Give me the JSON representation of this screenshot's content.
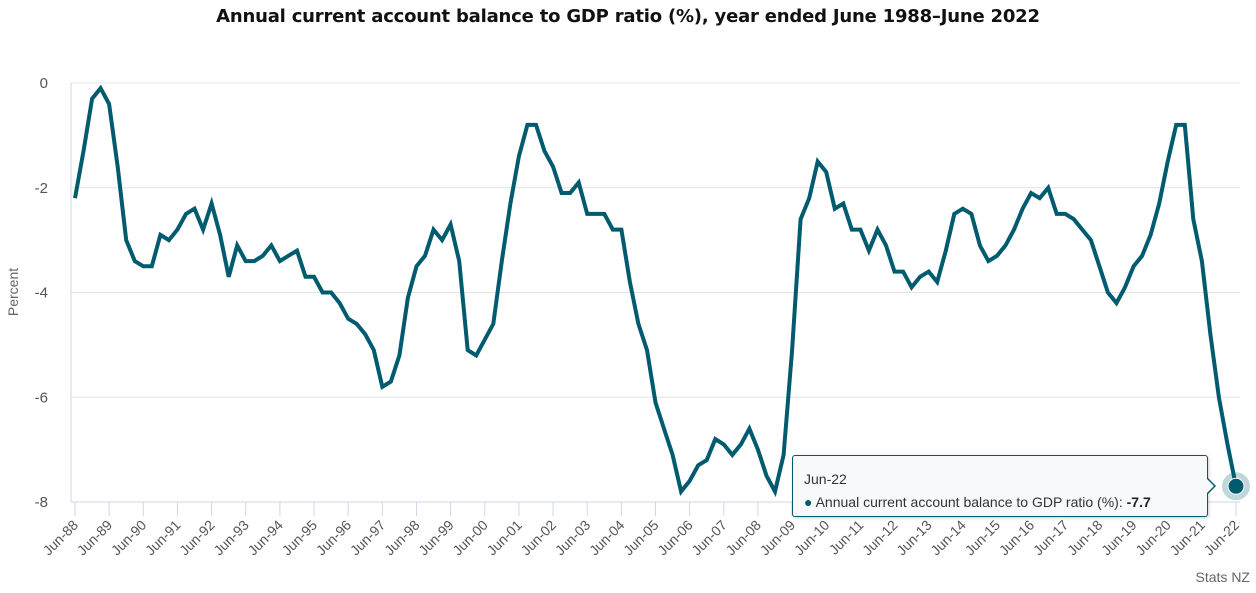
{
  "chart_data": {
    "type": "line",
    "title": "Annual current account balance to GDP ratio (%), year ended June 1988–June 2022",
    "xlabel": "",
    "ylabel": "Percent",
    "ylim": [
      -8,
      0
    ],
    "yticks": [
      0,
      -2,
      -4,
      -6,
      -8
    ],
    "grid": true,
    "xtick_labels": [
      "Jun-88",
      "Jun-89",
      "Jun-90",
      "Jun-91",
      "Jun-92",
      "Jun-93",
      "Jun-94",
      "Jun-95",
      "Jun-96",
      "Jun-97",
      "Jun-98",
      "Jun-99",
      "Jun-00",
      "Jun-01",
      "Jun-02",
      "Jun-03",
      "Jun-04",
      "Jun-05",
      "Jun-06",
      "Jun-07",
      "Jun-08",
      "Jun-09",
      "Jun-10",
      "Jun-11",
      "Jun-12",
      "Jun-13",
      "Jun-14",
      "Jun-15",
      "Jun-16",
      "Jun-17",
      "Jun-18",
      "Jun-19",
      "Jun-20",
      "Jun-21",
      "Jun-22"
    ],
    "x_start": "Jun-88",
    "x_frequency": "quarterly",
    "series": [
      {
        "name": "Annual current account balance to GDP ratio (%)",
        "color": "#005b6e",
        "values": [
          -2.2,
          -1.3,
          -0.3,
          -0.1,
          -0.4,
          -1.6,
          -3.0,
          -3.4,
          -3.5,
          -3.5,
          -2.9,
          -3.0,
          -2.8,
          -2.5,
          -2.4,
          -2.8,
          -2.3,
          -2.9,
          -3.7,
          -3.1,
          -3.4,
          -3.4,
          -3.3,
          -3.1,
          -3.4,
          -3.3,
          -3.2,
          -3.7,
          -3.7,
          -4.0,
          -4.0,
          -4.2,
          -4.5,
          -4.6,
          -4.8,
          -5.1,
          -5.8,
          -5.7,
          -5.2,
          -4.1,
          -3.5,
          -3.3,
          -2.8,
          -3.0,
          -2.7,
          -3.4,
          -5.1,
          -5.2,
          -4.9,
          -4.6,
          -3.4,
          -2.3,
          -1.4,
          -0.8,
          -0.8,
          -1.3,
          -1.6,
          -2.1,
          -2.1,
          -1.9,
          -2.5,
          -2.5,
          -2.5,
          -2.8,
          -2.8,
          -3.8,
          -4.6,
          -5.1,
          -6.1,
          -6.6,
          -7.1,
          -7.8,
          -7.6,
          -7.3,
          -7.2,
          -6.8,
          -6.9,
          -7.1,
          -6.9,
          -6.6,
          -7.0,
          -7.5,
          -7.8,
          -7.1,
          -5.1,
          -2.6,
          -2.2,
          -1.5,
          -1.7,
          -2.4,
          -2.3,
          -2.8,
          -2.8,
          -3.2,
          -2.8,
          -3.1,
          -3.6,
          -3.6,
          -3.9,
          -3.7,
          -3.6,
          -3.8,
          -3.2,
          -2.5,
          -2.4,
          -2.5,
          -3.1,
          -3.4,
          -3.3,
          -3.1,
          -2.8,
          -2.4,
          -2.1,
          -2.2,
          -2.0,
          -2.5,
          -2.5,
          -2.6,
          -2.8,
          -3.0,
          -3.5,
          -4.0,
          -4.2,
          -3.9,
          -3.5,
          -3.3,
          -2.9,
          -2.3,
          -1.5,
          -0.8,
          -0.8,
          -2.6,
          -3.4,
          -4.8,
          -6.0,
          -6.9,
          -7.7
        ]
      }
    ],
    "tooltip": {
      "x_label": "Jun-22",
      "series_name": "Annual current account balance to GDP ratio (%)",
      "value": "-7.7"
    },
    "credit": "Stats NZ"
  }
}
